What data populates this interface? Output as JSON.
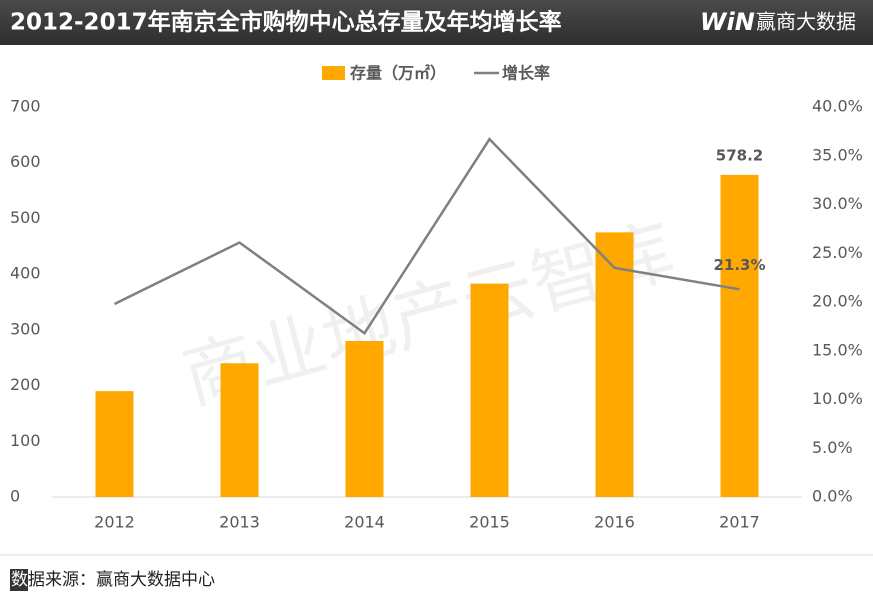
{
  "chart_data": {
    "type": "bar-line",
    "title": "2012-2017年南京全市购物中心总存量及年均增长率",
    "categories": [
      "2012",
      "2013",
      "2014",
      "2015",
      "2016",
      "2017"
    ],
    "series": [
      {
        "name": "存量（万㎡）",
        "type": "bar",
        "color": "#FFA800",
        "values": [
          190,
          240,
          280,
          383,
          475,
          578.2
        ],
        "value_labels": [
          null,
          null,
          null,
          null,
          null,
          "578.2"
        ]
      },
      {
        "name": "增长率",
        "type": "line",
        "axis": "y2",
        "color": "#808080",
        "values": [
          19.8,
          26.1,
          16.8,
          36.7,
          23.5,
          21.3
        ],
        "value_labels": [
          null,
          null,
          null,
          null,
          null,
          "21.3%"
        ]
      }
    ],
    "ylim": [
      0,
      700
    ],
    "yticks": [
      0,
      100,
      200,
      300,
      400,
      500,
      600,
      700
    ],
    "y2lim": [
      0,
      40
    ],
    "y2ticks": [
      {
        "value": 0,
        "label": "0.0%"
      },
      {
        "value": 5,
        "label": "5.0%"
      },
      {
        "value": 10,
        "label": "10.0%"
      },
      {
        "value": 15,
        "label": "15.0%"
      },
      {
        "value": 20,
        "label": "20.0%"
      },
      {
        "value": 25,
        "label": "25.0%"
      },
      {
        "value": 30,
        "label": "30.0%"
      },
      {
        "value": 35,
        "label": "35.0%"
      },
      {
        "value": 40,
        "label": "40.0%"
      }
    ],
    "legend": "top"
  },
  "logo": "WiN",
  "brand": "赢商大数据",
  "watermark": "商业地产云智库",
  "source": {
    "marker": "数",
    "text": "据来源：赢商大数据中心"
  }
}
